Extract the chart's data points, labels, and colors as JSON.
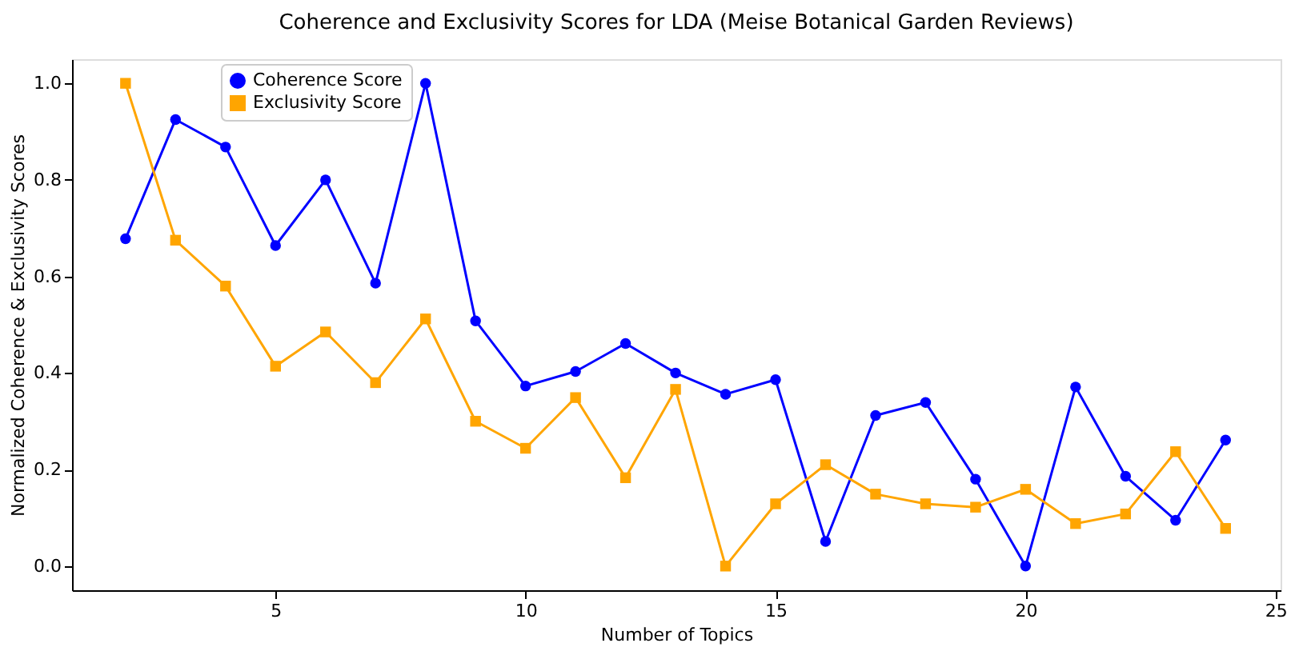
{
  "chart_data": {
    "type": "line",
    "title": "Coherence and Exclusivity Scores for LDA (Meise Botanical Garden Reviews)",
    "xlabel": "Number of Topics",
    "ylabel": "Normalized Coherence & Exclusivity Scores",
    "x": [
      2,
      3,
      4,
      5,
      6,
      7,
      8,
      9,
      10,
      11,
      12,
      13,
      14,
      15,
      16,
      17,
      18,
      19,
      20,
      21,
      22,
      23,
      24
    ],
    "series": [
      {
        "name": "Coherence Score",
        "color": "#0000ff",
        "marker": "circle",
        "values": [
          0.678,
          0.925,
          0.868,
          0.664,
          0.8,
          0.586,
          1.0,
          0.508,
          0.373,
          0.403,
          0.461,
          0.4,
          0.356,
          0.386,
          0.051,
          0.312,
          0.339,
          0.18,
          0.0,
          0.371,
          0.186,
          0.095,
          0.261
        ]
      },
      {
        "name": "Exclusivity Score",
        "color": "#ffa500",
        "marker": "square",
        "values": [
          1.0,
          0.675,
          0.58,
          0.414,
          0.485,
          0.38,
          0.512,
          0.3,
          0.244,
          0.349,
          0.183,
          0.366,
          0.0,
          0.129,
          0.21,
          0.149,
          0.129,
          0.122,
          0.159,
          0.088,
          0.108,
          0.237,
          0.078
        ]
      }
    ],
    "xlim": [
      0.93,
      25.1
    ],
    "ylim": [
      -0.05,
      1.05
    ],
    "xticks": [
      5,
      10,
      15,
      20,
      25
    ],
    "yticks": [
      {
        "value": 0,
        "label": "0.0"
      },
      0.2,
      0.4,
      0.6,
      0.8,
      {
        "value": 1,
        "label": "1.0"
      }
    ],
    "grid": false,
    "legend": "top left",
    "line_style": "solid"
  }
}
